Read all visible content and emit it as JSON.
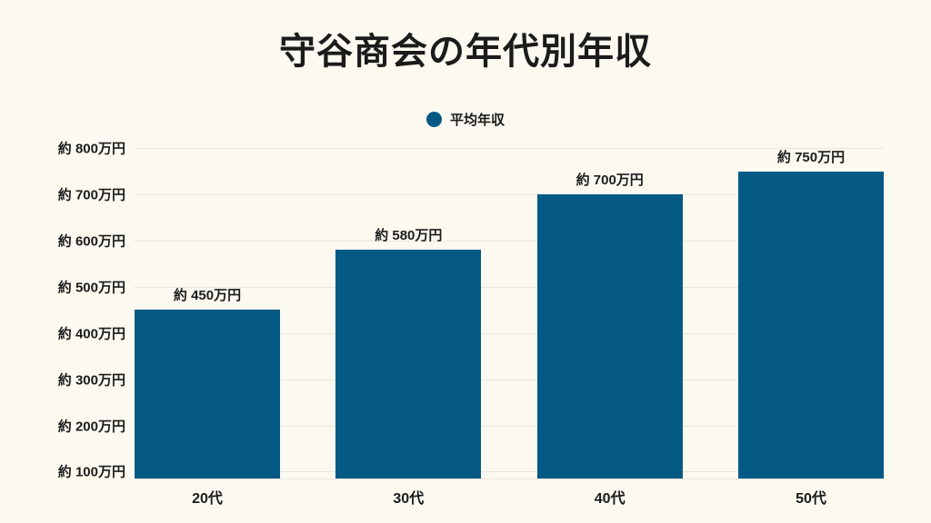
{
  "colors": {
    "background": "#FBF9F0",
    "bar": "#055A85",
    "gridline": "#E8E5DC",
    "text": "#1B1B1B"
  },
  "legend": {
    "label": "平均年収"
  },
  "chart_data": {
    "type": "bar",
    "title": "守谷商会の年代別年収",
    "xlabel": "",
    "ylabel": "",
    "categories": [
      "20代",
      "30代",
      "40代",
      "50代"
    ],
    "series": [
      {
        "name": "平均年収",
        "values": [
          450,
          580,
          700,
          750
        ]
      }
    ],
    "bar_labels": [
      "約 450万円",
      "約 580万円",
      "約 700万円",
      "約 750万円"
    ],
    "y_ticks": [
      {
        "value": 800,
        "label": "約 800万円"
      },
      {
        "value": 700,
        "label": "約 700万円"
      },
      {
        "value": 600,
        "label": "約 600万円"
      },
      {
        "value": 500,
        "label": "約 500万円"
      },
      {
        "value": 400,
        "label": "約 400万円"
      },
      {
        "value": 300,
        "label": "約 300万円"
      },
      {
        "value": 200,
        "label": "約 200万円"
      },
      {
        "value": 100,
        "label": "約 100万円"
      }
    ],
    "ylim": [
      85,
      800
    ],
    "grid": "horizontal",
    "legend_position": "top",
    "unit": "万円"
  }
}
